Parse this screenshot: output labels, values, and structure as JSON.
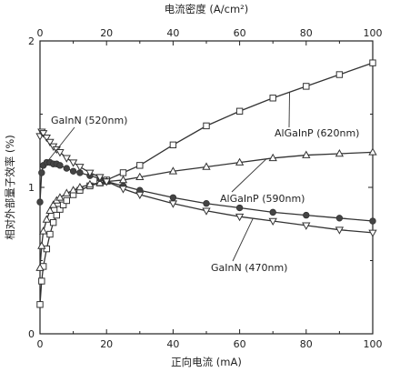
{
  "chart_data": {
    "type": "line",
    "xlabel": "正向电流 (mA)",
    "x2label": "电流密度 (A/cm²)",
    "ylabel": "相对外部量子效率 (%)",
    "xlim": [
      0,
      100
    ],
    "x2lim": [
      0,
      100
    ],
    "ylim": [
      0,
      2
    ],
    "x_ticks": [
      0,
      20,
      40,
      60,
      80,
      100
    ],
    "x2_ticks": [
      0,
      20,
      40,
      60,
      80,
      100
    ],
    "y_ticks": [
      0,
      1,
      2
    ],
    "grid": false,
    "series": [
      {
        "name": "AlGaInP (620nm)",
        "marker": "square-open",
        "x": [
          0,
          0.5,
          1,
          2,
          3,
          4,
          5,
          6,
          7,
          8,
          10,
          12,
          15,
          18,
          20,
          25,
          30,
          40,
          50,
          60,
          70,
          80,
          90,
          100
        ],
        "y": [
          0.2,
          0.36,
          0.46,
          0.58,
          0.68,
          0.76,
          0.81,
          0.85,
          0.88,
          0.91,
          0.95,
          0.98,
          1.01,
          1.03,
          1.05,
          1.1,
          1.15,
          1.29,
          1.42,
          1.52,
          1.61,
          1.69,
          1.77,
          1.85
        ]
      },
      {
        "name": "AlGaInP (590nm)",
        "marker": "triangle-up-open",
        "x": [
          0,
          0.5,
          1,
          2,
          3,
          4,
          5,
          6,
          8,
          10,
          12,
          15,
          18,
          20,
          25,
          30,
          40,
          50,
          60,
          70,
          80,
          90,
          100
        ],
        "y": [
          0.45,
          0.6,
          0.7,
          0.78,
          0.84,
          0.88,
          0.91,
          0.93,
          0.96,
          0.98,
          1.0,
          1.02,
          1.03,
          1.04,
          1.05,
          1.07,
          1.11,
          1.14,
          1.17,
          1.2,
          1.22,
          1.23,
          1.24
        ]
      },
      {
        "name": "GaInN (520nm)",
        "marker": "circle-filled",
        "x": [
          0,
          0.5,
          1,
          2,
          3,
          4,
          5,
          6,
          8,
          10,
          12,
          15,
          18,
          20,
          25,
          30,
          40,
          50,
          60,
          70,
          80,
          90,
          100
        ],
        "y": [
          0.9,
          1.1,
          1.15,
          1.17,
          1.17,
          1.16,
          1.16,
          1.15,
          1.13,
          1.11,
          1.1,
          1.08,
          1.06,
          1.04,
          1.01,
          0.98,
          0.93,
          0.89,
          0.86,
          0.83,
          0.81,
          0.79,
          0.77
        ]
      },
      {
        "name": "GaInN (470nm)",
        "marker": "triangle-down-open",
        "x": [
          0,
          0.5,
          1,
          2,
          3,
          4,
          5,
          6,
          8,
          10,
          12,
          15,
          18,
          20,
          25,
          30,
          40,
          50,
          60,
          70,
          80,
          90,
          100
        ],
        "y": [
          1.35,
          1.38,
          1.37,
          1.34,
          1.31,
          1.28,
          1.26,
          1.24,
          1.2,
          1.17,
          1.14,
          1.1,
          1.07,
          1.04,
          0.99,
          0.95,
          0.89,
          0.84,
          0.8,
          0.77,
          0.74,
          0.71,
          0.69
        ]
      }
    ],
    "annotations": [
      {
        "text": "GaInN (520nm)",
        "series": "GaInN (520nm)",
        "point_x": 2
      },
      {
        "text": "AlGaInP (620nm)",
        "series": "AlGaInP (620nm)",
        "point_x": 75
      },
      {
        "text": "AlGaInP (590nm)",
        "series": "AlGaInP (590nm)",
        "point_x": 68
      },
      {
        "text": "GaInN (470nm)",
        "series": "GaInN (470nm)",
        "point_x": 64
      }
    ]
  }
}
